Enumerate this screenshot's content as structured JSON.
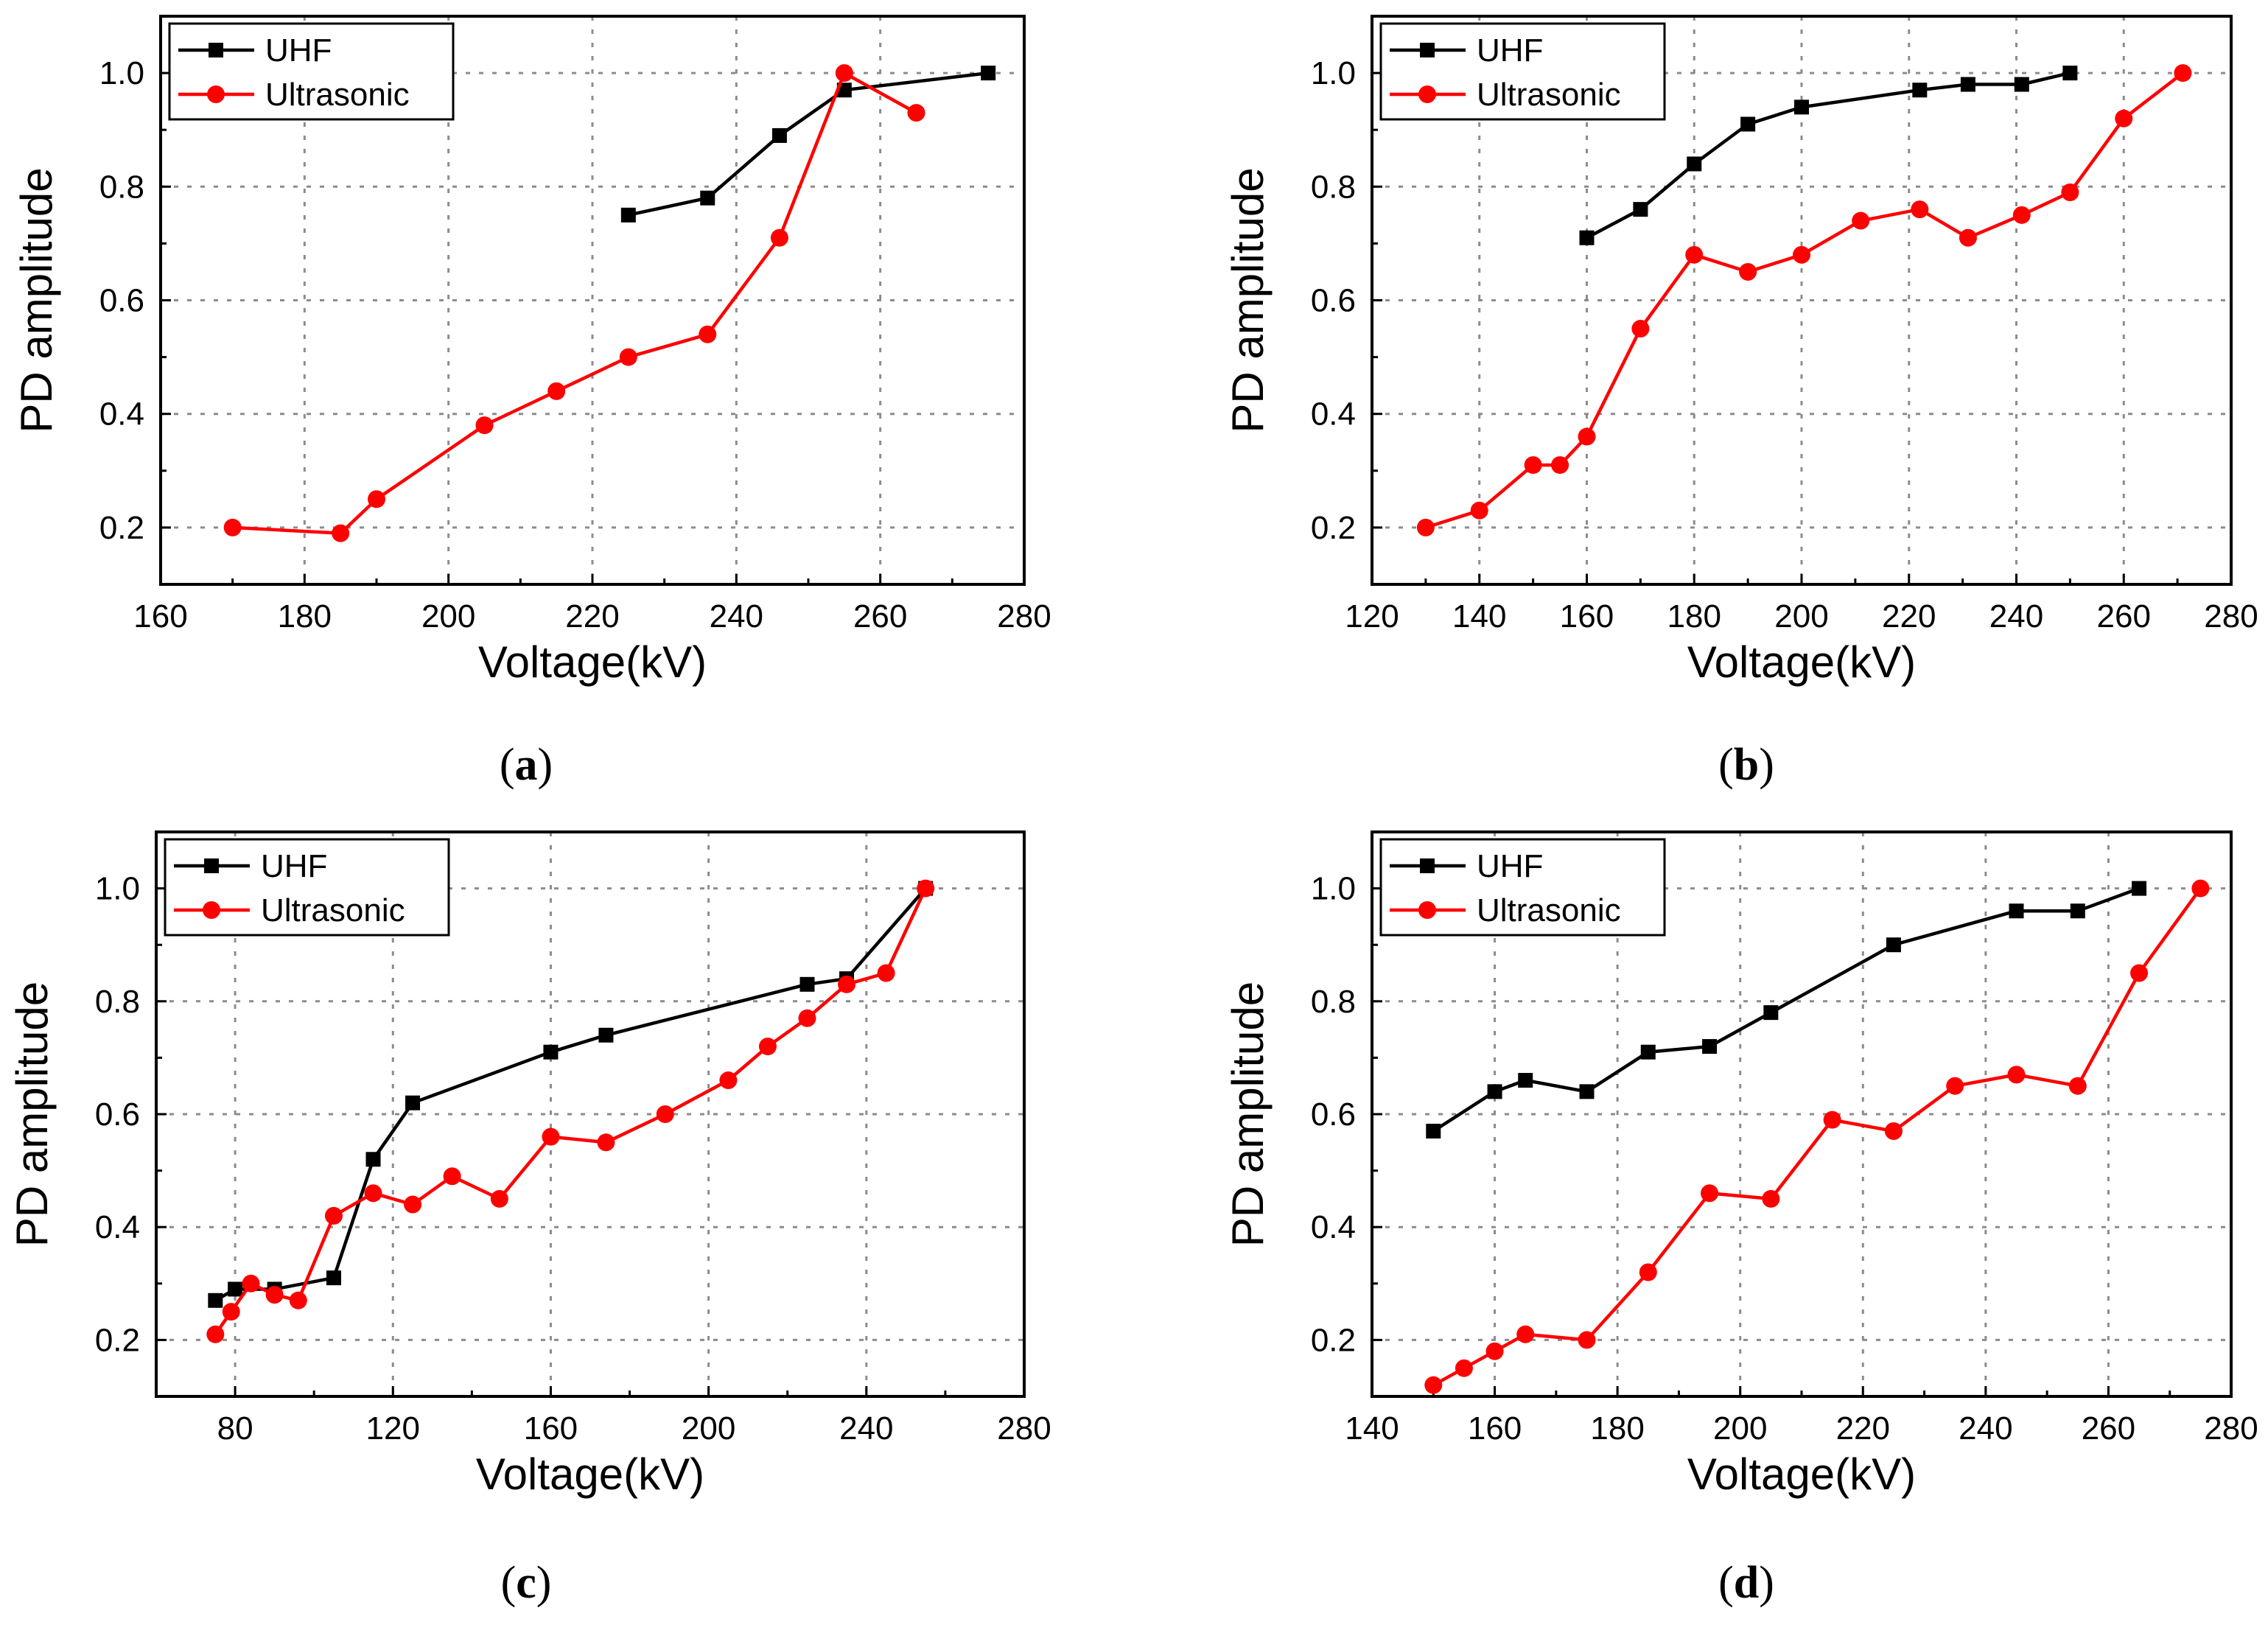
{
  "colors": {
    "uhf": "#000000",
    "ultrasonic": "#ff0000",
    "grid": "#8c8c8c",
    "axis": "#000000",
    "background": "#ffffff"
  },
  "chart_data": [
    {
      "id": "a",
      "type": "line",
      "panel_label": "(a)",
      "panel_letter": "a",
      "xlabel": "Voltage(kV)",
      "ylabel": "PD amplitude",
      "xlim": [
        160,
        280
      ],
      "ylim": [
        0.1,
        1.1
      ],
      "xticks": [
        160,
        180,
        200,
        220,
        240,
        260,
        280
      ],
      "yticks": [
        0.2,
        0.4,
        0.6,
        0.8,
        1.0
      ],
      "xtick_labels": [
        "160",
        "180",
        "200",
        "220",
        "240",
        "260",
        "280"
      ],
      "ytick_labels": [
        "0.2",
        "0.4",
        "0.6",
        "0.8",
        "1.0"
      ],
      "grid": true,
      "legend_position": "top-left",
      "series": [
        {
          "name": "UHF",
          "marker": "square",
          "color": "#000000",
          "x": [
            225,
            236,
            246,
            255,
            275
          ],
          "y": [
            0.75,
            0.78,
            0.89,
            0.97,
            1.0
          ]
        },
        {
          "name": "Ultrasonic",
          "marker": "circle",
          "color": "#ff0000",
          "x": [
            170,
            185,
            190,
            205,
            215,
            225,
            236,
            246,
            255,
            265
          ],
          "y": [
            0.2,
            0.19,
            0.25,
            0.38,
            0.44,
            0.5,
            0.54,
            0.71,
            1.0,
            0.93
          ]
        }
      ]
    },
    {
      "id": "b",
      "type": "line",
      "panel_label": "(b)",
      "panel_letter": "b",
      "xlabel": "Voltage(kV)",
      "ylabel": "PD amplitude",
      "xlim": [
        120,
        280
      ],
      "ylim": [
        0.1,
        1.1
      ],
      "xticks": [
        120,
        140,
        160,
        180,
        200,
        220,
        240,
        260,
        280
      ],
      "yticks": [
        0.2,
        0.4,
        0.6,
        0.8,
        1.0
      ],
      "xtick_labels": [
        "120",
        "140",
        "160",
        "180",
        "200",
        "220",
        "240",
        "260",
        "280"
      ],
      "ytick_labels": [
        "0.2",
        "0.4",
        "0.6",
        "0.8",
        "1.0"
      ],
      "grid": true,
      "legend_position": "top-left",
      "series": [
        {
          "name": "UHF",
          "marker": "square",
          "color": "#000000",
          "x": [
            160,
            170,
            180,
            190,
            200,
            222,
            231,
            241,
            250
          ],
          "y": [
            0.71,
            0.76,
            0.84,
            0.91,
            0.94,
            0.97,
            0.98,
            0.98,
            1.0
          ]
        },
        {
          "name": "Ultrasonic",
          "marker": "circle",
          "color": "#ff0000",
          "x": [
            130,
            140,
            150,
            155,
            160,
            170,
            180,
            190,
            200,
            211,
            222,
            231,
            241,
            250,
            260,
            271
          ],
          "y": [
            0.2,
            0.23,
            0.31,
            0.31,
            0.36,
            0.55,
            0.68,
            0.65,
            0.68,
            0.74,
            0.76,
            0.71,
            0.75,
            0.79,
            0.92,
            1.0
          ]
        }
      ]
    },
    {
      "id": "c",
      "type": "line",
      "panel_label": "(c)",
      "panel_letter": "c",
      "xlabel": "Voltage(kV)",
      "ylabel": "PD amplitude",
      "xlim": [
        60,
        280
      ],
      "ylim": [
        0.1,
        1.1
      ],
      "xticks": [
        80,
        120,
        160,
        200,
        240,
        280
      ],
      "yticks": [
        0.2,
        0.4,
        0.6,
        0.8,
        1.0
      ],
      "xtick_labels": [
        "80",
        "120",
        "160",
        "200",
        "240",
        "280"
      ],
      "ytick_labels": [
        "0.2",
        "0.4",
        "0.6",
        "0.8",
        "1.0"
      ],
      "grid": true,
      "legend_position": "top-left",
      "series": [
        {
          "name": "UHF",
          "marker": "square",
          "color": "#000000",
          "x": [
            75,
            80,
            90,
            105,
            115,
            125,
            160,
            174,
            225,
            235,
            255
          ],
          "y": [
            0.27,
            0.29,
            0.29,
            0.31,
            0.52,
            0.62,
            0.71,
            0.74,
            0.83,
            0.84,
            1.0
          ]
        },
        {
          "name": "Ultrasonic",
          "marker": "circle",
          "color": "#ff0000",
          "x": [
            75,
            79,
            84,
            90,
            96,
            105,
            115,
            125,
            135,
            147,
            160,
            174,
            189,
            205,
            215,
            225,
            235,
            245,
            255
          ],
          "y": [
            0.21,
            0.25,
            0.3,
            0.28,
            0.27,
            0.42,
            0.46,
            0.44,
            0.49,
            0.45,
            0.56,
            0.55,
            0.6,
            0.66,
            0.72,
            0.77,
            0.83,
            0.85,
            1.0
          ]
        }
      ]
    },
    {
      "id": "d",
      "type": "line",
      "panel_label": "(d)",
      "panel_letter": "d",
      "xlabel": "Voltage(kV)",
      "ylabel": "PD amplitude",
      "xlim": [
        140,
        280
      ],
      "ylim": [
        0.1,
        1.1
      ],
      "xticks": [
        140,
        160,
        180,
        200,
        220,
        240,
        260,
        280
      ],
      "yticks": [
        0.2,
        0.4,
        0.6,
        0.8,
        1.0
      ],
      "xtick_labels": [
        "140",
        "160",
        "180",
        "200",
        "220",
        "240",
        "260",
        "280"
      ],
      "ytick_labels": [
        "0.2",
        "0.4",
        "0.6",
        "0.8",
        "1.0"
      ],
      "grid": true,
      "legend_position": "top-left",
      "series": [
        {
          "name": "UHF",
          "marker": "square",
          "color": "#000000",
          "x": [
            150,
            160,
            165,
            175,
            185,
            195,
            205,
            225,
            245,
            255,
            265
          ],
          "y": [
            0.57,
            0.64,
            0.66,
            0.64,
            0.71,
            0.72,
            0.78,
            0.9,
            0.96,
            0.96,
            1.0
          ]
        },
        {
          "name": "Ultrasonic",
          "marker": "circle",
          "color": "#ff0000",
          "x": [
            150,
            155,
            160,
            165,
            175,
            185,
            195,
            205,
            215,
            225,
            235,
            245,
            255,
            265,
            275
          ],
          "y": [
            0.12,
            0.15,
            0.18,
            0.21,
            0.2,
            0.32,
            0.46,
            0.45,
            0.59,
            0.57,
            0.65,
            0.67,
            0.65,
            0.85,
            1.0
          ]
        }
      ]
    }
  ]
}
